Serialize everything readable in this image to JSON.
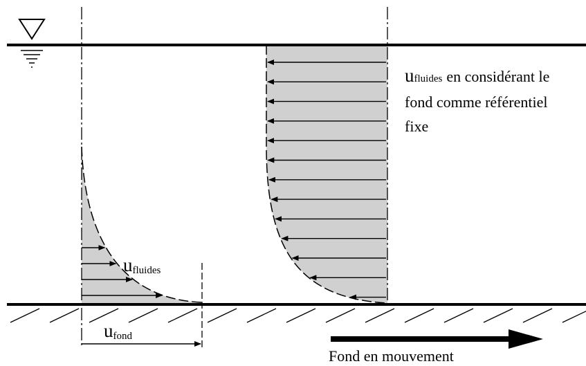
{
  "labels": {
    "right_note": {
      "symbol": "u",
      "subscript": "fluides",
      "lines": [
        "en considérant le",
        "fond comme référentiel",
        "fixe"
      ]
    },
    "left_profile": {
      "symbol": "u",
      "subscript": "fluides"
    },
    "bottom_velocity": {
      "symbol": "u",
      "subscript": "fond"
    },
    "motion": "Fond en mouvement"
  }
}
